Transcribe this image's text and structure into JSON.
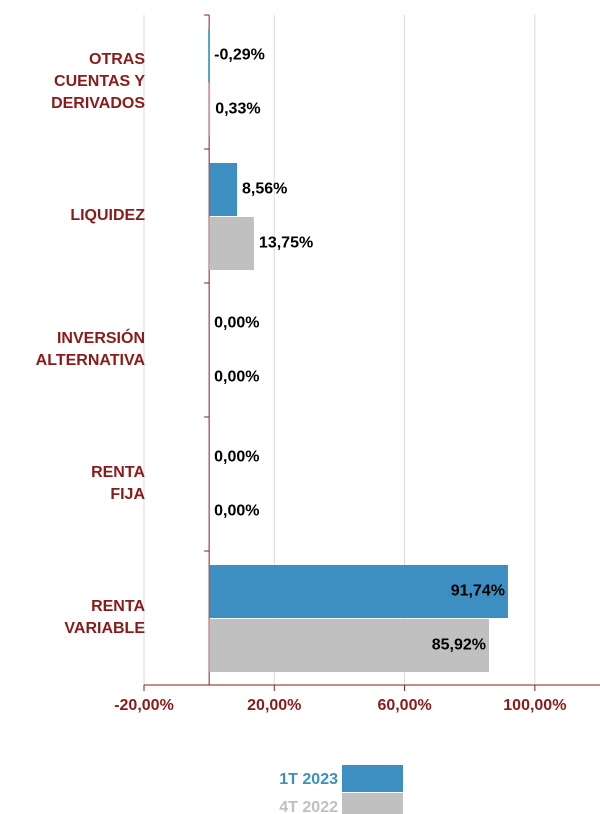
{
  "chart_data": {
    "type": "hbar",
    "categories": [
      [
        "OTRAS",
        "CUENTAS Y",
        "DERIVADOS"
      ],
      [
        "LIQUIDEZ"
      ],
      [
        "INVERSIÓN",
        "ALTERNATIVA"
      ],
      [
        "RENTA",
        "FIJA"
      ],
      [
        "RENTA",
        "VARIABLE"
      ]
    ],
    "series": [
      {
        "name": "1T 2023",
        "color": "#3d8fc1",
        "values": [
          -0.29,
          8.56,
          0,
          0,
          91.74
        ],
        "value_labels": [
          "-0,29%",
          "8,56%",
          "0,00%",
          "0,00%",
          "91,74%"
        ]
      },
      {
        "name": "4T 2022",
        "color": "#c0c0c0",
        "values": [
          0.33,
          13.75,
          0,
          0,
          85.92
        ],
        "value_labels": [
          "0,33%",
          "13,75%",
          "0,00%",
          "0,00%",
          "85,92%"
        ]
      }
    ],
    "xlim": [
      -20,
      120
    ],
    "xticks": [
      {
        "value": -20,
        "label": "-20,00%"
      },
      {
        "value": 20,
        "label": "20,00%"
      },
      {
        "value": 60,
        "label": "60,00%"
      },
      {
        "value": 100,
        "label": "100,00%"
      }
    ],
    "grid": true
  }
}
